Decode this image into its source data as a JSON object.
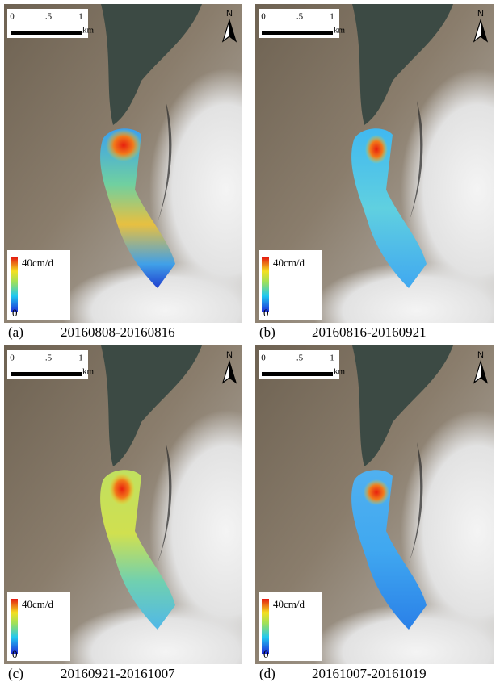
{
  "panels": [
    {
      "label": "(a)",
      "dates": "20160808-20160816",
      "scale_bar": {
        "ticks": [
          "0",
          ".5",
          "1"
        ],
        "unit": "km"
      },
      "north": "N",
      "legend": {
        "max": "40cm/d",
        "min": "0"
      }
    },
    {
      "label": "(b)",
      "dates": "20160816-20160921",
      "scale_bar": {
        "ticks": [
          "0",
          ".5",
          "1"
        ],
        "unit": "km"
      },
      "north": "N",
      "legend": {
        "max": "40cm/d",
        "min": "0"
      }
    },
    {
      "label": "(c)",
      "dates": "20160921-20161007",
      "scale_bar": {
        "ticks": [
          "0",
          ".5",
          "1"
        ],
        "unit": "km"
      },
      "north": "N",
      "legend": {
        "max": "40cm/d",
        "min": "0"
      }
    },
    {
      "label": "(d)",
      "dates": "20161007-20161019",
      "scale_bar": {
        "ticks": [
          "0",
          ".5",
          "1"
        ],
        "unit": "km"
      },
      "north": "N",
      "legend": {
        "max": "40cm/d",
        "min": "0"
      }
    }
  ]
}
